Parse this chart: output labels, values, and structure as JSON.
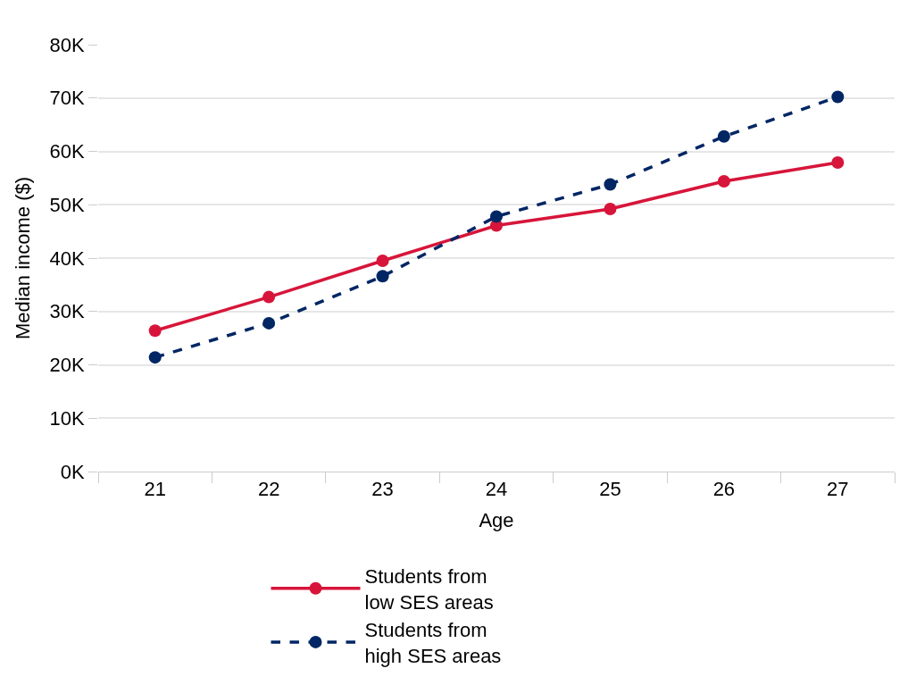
{
  "chart_data": {
    "type": "line",
    "xlabel": "Age",
    "ylabel": "Median income ($)",
    "categories": [
      "21",
      "22",
      "23",
      "24",
      "25",
      "26",
      "27"
    ],
    "series": [
      {
        "name": "Students from low SES areas",
        "color": "#d7153a",
        "line_style": "solid",
        "values": [
          26400,
          32700,
          39500,
          46100,
          49200,
          54400,
          57900
        ]
      },
      {
        "name": "Students from high SES areas",
        "color": "#002664",
        "line_style": "dashed",
        "values": [
          21400,
          27800,
          36600,
          47800,
          53800,
          62800,
          70200
        ]
      }
    ],
    "ylim": [
      0,
      80000
    ],
    "yticks": [
      {
        "value": 0,
        "label": "0K"
      },
      {
        "value": 10000,
        "label": "10K"
      },
      {
        "value": 20000,
        "label": "20K"
      },
      {
        "value": 30000,
        "label": "30K"
      },
      {
        "value": 40000,
        "label": "40K"
      },
      {
        "value": 50000,
        "label": "50K"
      },
      {
        "value": 60000,
        "label": "60K"
      },
      {
        "value": 70000,
        "label": "70K"
      },
      {
        "value": 80000,
        "label": "80K"
      }
    ],
    "grid": "y",
    "legend": "bottom",
    "marker": "circle"
  }
}
